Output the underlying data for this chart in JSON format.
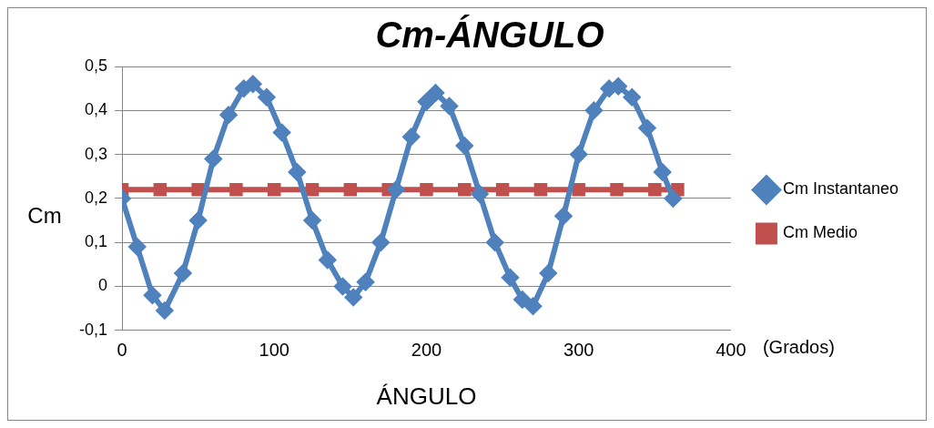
{
  "chart_data": {
    "type": "line",
    "title": "Cm-ÁNGULO",
    "xlabel": "ÁNGULO",
    "ylabel": "Cm",
    "annotations": [
      "(Grados)"
    ],
    "xlim": [
      0,
      400
    ],
    "xticks": [
      0,
      100,
      200,
      300,
      400
    ],
    "ylim": [
      -0.1,
      0.5
    ],
    "yticks": [
      {
        "value": -0.1,
        "label": "-0,1"
      },
      0,
      {
        "value": 0.1,
        "label": "0,1"
      },
      {
        "value": 0.2,
        "label": "0,2"
      },
      {
        "value": 0.3,
        "label": "0,3"
      },
      {
        "value": 0.4,
        "label": "0,4"
      },
      {
        "value": 0.5,
        "label": "0,5"
      }
    ],
    "grid": "y",
    "legend": "right",
    "series": [
      {
        "name": "Cm Instantaneo",
        "color": "#4f81bd",
        "marker": "diamond",
        "x": [
          0,
          10,
          20,
          28,
          40,
          50,
          60,
          70,
          80,
          86,
          95,
          105,
          115,
          125,
          135,
          145,
          152,
          160,
          170,
          180,
          190,
          200,
          206,
          215,
          225,
          235,
          245,
          255,
          263,
          270,
          280,
          290,
          300,
          310,
          320,
          326,
          335,
          345,
          355,
          362
        ],
        "values": [
          0.2,
          0.09,
          -0.02,
          -0.055,
          0.03,
          0.15,
          0.29,
          0.39,
          0.45,
          0.46,
          0.43,
          0.35,
          0.26,
          0.15,
          0.06,
          0,
          -0.025,
          0.01,
          0.1,
          0.22,
          0.34,
          0.42,
          0.44,
          0.41,
          0.32,
          0.21,
          0.1,
          0.02,
          -0.03,
          -0.045,
          0.03,
          0.16,
          0.3,
          0.4,
          0.45,
          0.455,
          0.43,
          0.36,
          0.26,
          0.2
        ]
      },
      {
        "name": "Cm Medio",
        "color": "#c0504d",
        "marker": "square",
        "x": [
          0,
          25,
          50,
          75,
          100,
          125,
          150,
          175,
          200,
          225,
          250,
          275,
          300,
          325,
          350,
          365
        ],
        "values": [
          0.22,
          0.22,
          0.22,
          0.22,
          0.22,
          0.22,
          0.22,
          0.22,
          0.22,
          0.22,
          0.22,
          0.22,
          0.22,
          0.22,
          0.22,
          0.22
        ]
      }
    ]
  }
}
